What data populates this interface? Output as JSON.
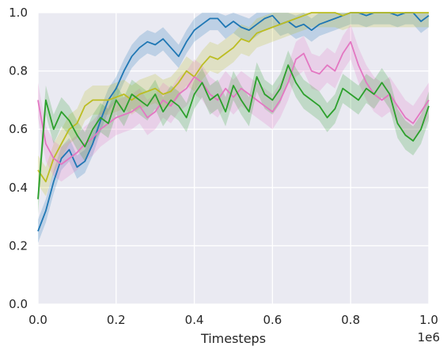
{
  "chart_data": {
    "type": "line",
    "title": "",
    "xlabel": "Timesteps",
    "ylabel": "",
    "x_offset_label": "1e6",
    "xlim": [
      0,
      1.0
    ],
    "ylim": [
      0,
      1.0
    ],
    "x_ticks": [
      "0.0",
      "0.2",
      "0.4",
      "0.6",
      "0.8",
      "1.0"
    ],
    "y_ticks": [
      "0.0",
      "0.2",
      "0.4",
      "0.6",
      "0.8",
      "1.0"
    ],
    "grid": true,
    "background": "#eaeaf2",
    "x": [
      0.0,
      0.02,
      0.04,
      0.06,
      0.08,
      0.1,
      0.12,
      0.14,
      0.16,
      0.18,
      0.2,
      0.22,
      0.24,
      0.26,
      0.28,
      0.3,
      0.32,
      0.34,
      0.36,
      0.38,
      0.4,
      0.42,
      0.44,
      0.46,
      0.48,
      0.5,
      0.52,
      0.54,
      0.56,
      0.58,
      0.6,
      0.62,
      0.64,
      0.66,
      0.68,
      0.7,
      0.72,
      0.74,
      0.76,
      0.78,
      0.8,
      0.82,
      0.84,
      0.86,
      0.88,
      0.9,
      0.92,
      0.94,
      0.96,
      0.98,
      1.0
    ],
    "series": [
      {
        "color": "#1f77b4",
        "band": 0.04,
        "values": [
          0.25,
          0.32,
          0.42,
          0.5,
          0.53,
          0.47,
          0.49,
          0.55,
          0.63,
          0.7,
          0.74,
          0.8,
          0.85,
          0.88,
          0.9,
          0.89,
          0.91,
          0.88,
          0.85,
          0.9,
          0.94,
          0.96,
          0.98,
          0.98,
          0.95,
          0.97,
          0.95,
          0.94,
          0.96,
          0.98,
          0.99,
          0.96,
          0.97,
          0.95,
          0.96,
          0.94,
          0.96,
          0.97,
          0.98,
          0.99,
          1.0,
          1.0,
          0.99,
          1.0,
          1.0,
          1.0,
          0.99,
          1.0,
          1.0,
          0.97,
          0.99
        ]
      },
      {
        "color": "#bcbd22",
        "band": 0.05,
        "values": [
          0.46,
          0.42,
          0.5,
          0.55,
          0.6,
          0.62,
          0.68,
          0.7,
          0.7,
          0.7,
          0.71,
          0.72,
          0.7,
          0.72,
          0.73,
          0.74,
          0.72,
          0.73,
          0.76,
          0.8,
          0.78,
          0.82,
          0.85,
          0.84,
          0.86,
          0.88,
          0.91,
          0.9,
          0.93,
          0.94,
          0.95,
          0.96,
          0.97,
          0.98,
          0.99,
          1.0,
          1.0,
          1.0,
          1.0,
          0.99,
          1.0,
          1.0,
          1.0,
          1.0,
          1.0,
          1.0,
          1.0,
          1.0,
          1.0,
          1.0,
          1.0
        ]
      },
      {
        "color": "#e377c2",
        "band": 0.06,
        "values": [
          0.7,
          0.55,
          0.5,
          0.48,
          0.5,
          0.52,
          0.55,
          0.57,
          0.6,
          0.62,
          0.64,
          0.65,
          0.66,
          0.68,
          0.64,
          0.66,
          0.7,
          0.68,
          0.72,
          0.74,
          0.78,
          0.76,
          0.72,
          0.7,
          0.74,
          0.71,
          0.74,
          0.72,
          0.7,
          0.68,
          0.66,
          0.7,
          0.76,
          0.84,
          0.86,
          0.8,
          0.79,
          0.82,
          0.8,
          0.86,
          0.9,
          0.82,
          0.76,
          0.72,
          0.7,
          0.72,
          0.68,
          0.64,
          0.62,
          0.66,
          0.7
        ]
      },
      {
        "color": "#2ca02c",
        "band": 0.05,
        "values": [
          0.36,
          0.7,
          0.6,
          0.66,
          0.63,
          0.58,
          0.54,
          0.6,
          0.64,
          0.62,
          0.7,
          0.66,
          0.72,
          0.7,
          0.68,
          0.72,
          0.66,
          0.7,
          0.68,
          0.64,
          0.72,
          0.76,
          0.7,
          0.72,
          0.66,
          0.75,
          0.7,
          0.66,
          0.78,
          0.72,
          0.7,
          0.74,
          0.82,
          0.76,
          0.72,
          0.7,
          0.68,
          0.64,
          0.67,
          0.74,
          0.72,
          0.7,
          0.74,
          0.72,
          0.76,
          0.72,
          0.62,
          0.58,
          0.56,
          0.6,
          0.68
        ]
      }
    ]
  }
}
